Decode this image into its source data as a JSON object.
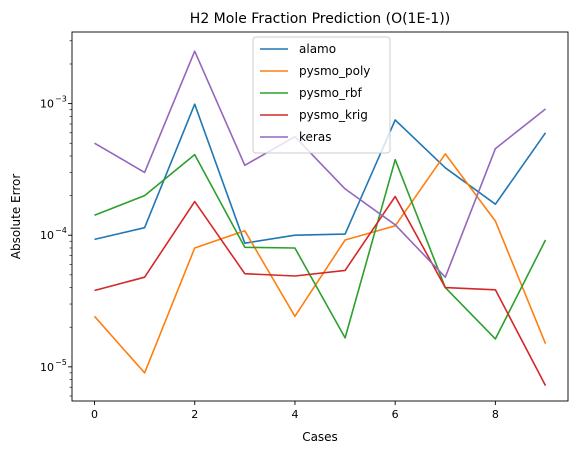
{
  "chart_data": {
    "type": "line",
    "title": "H2 Mole Fraction Prediction (O(1E-1))",
    "xlabel": "Cases",
    "ylabel": "Absolute Error",
    "yscale": "log",
    "xlim": [
      -0.45,
      9.45
    ],
    "ylim": [
      5.5e-06,
      0.0035
    ],
    "grid": false,
    "legend_position": "top-center",
    "x": [
      0,
      1,
      2,
      3,
      4,
      5,
      6,
      7,
      8,
      9
    ],
    "x_ticks": [
      0,
      2,
      4,
      6,
      8
    ],
    "x_tick_labels": [
      "0",
      "2",
      "4",
      "6",
      "8"
    ],
    "y_ticks": [
      1e-05,
      0.0001,
      0.001
    ],
    "y_tick_labels": [
      "10",
      "10",
      "10"
    ],
    "y_tick_exponents": [
      "−5",
      "−4",
      "−3"
    ],
    "series": [
      {
        "name": "alamo",
        "color": "#1f77b4",
        "values": [
          9.3e-05,
          0.000114,
          0.00099,
          8.7e-05,
          0.0001,
          0.000102,
          0.00075,
          0.000325,
          0.000172,
          0.0006
        ]
      },
      {
        "name": "pysmo_poly",
        "color": "#ff7f0e",
        "values": [
          2.42e-05,
          9e-06,
          8e-05,
          0.000108,
          2.42e-05,
          9.2e-05,
          0.000118,
          0.000415,
          0.000128,
          1.5e-05
        ]
      },
      {
        "name": "pysmo_rbf",
        "color": "#2ca02c",
        "values": [
          0.000142,
          0.0002,
          0.00041,
          8.1e-05,
          8e-05,
          1.66e-05,
          0.000375,
          4e-05,
          1.63e-05,
          9.2e-05
        ]
      },
      {
        "name": "pysmo_krig",
        "color": "#d62728",
        "values": [
          3.8e-05,
          4.8e-05,
          0.00018,
          5.1e-05,
          4.9e-05,
          5.4e-05,
          0.000197,
          4e-05,
          3.85e-05,
          7.2e-06
        ]
      },
      {
        "name": "keras",
        "color": "#9467bd",
        "values": [
          0.0005,
          0.0003,
          0.0025,
          0.00034,
          0.00056,
          0.000225,
          0.00012,
          4.8e-05,
          0.000455,
          0.00091
        ]
      }
    ]
  }
}
